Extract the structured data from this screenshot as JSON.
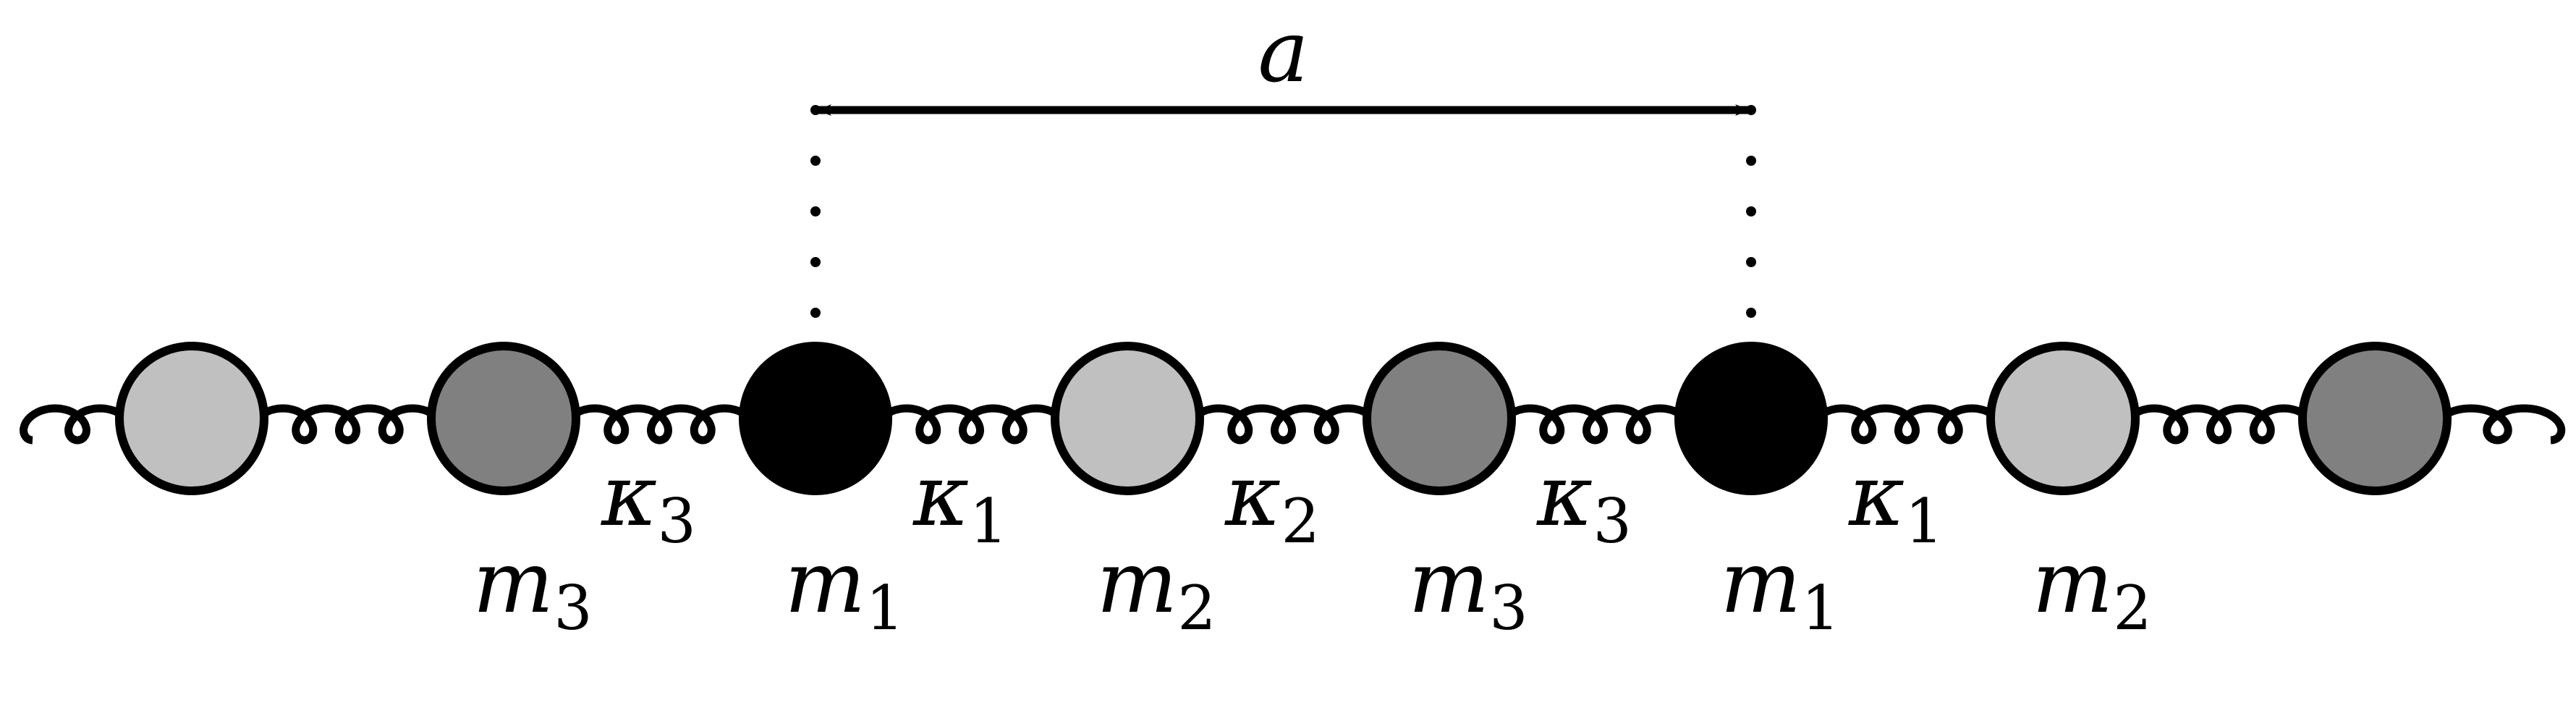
{
  "lattice": {
    "period_label": "a",
    "colors": {
      "m1": "#000000",
      "m2": "#c0c0c0",
      "m3": "#808080",
      "outline": "#000000",
      "spring": "#000000"
    },
    "masses": [
      {
        "type": "m2",
        "label": ""
      },
      {
        "type": "m3",
        "label": "m3"
      },
      {
        "type": "m1",
        "label": "m1"
      },
      {
        "type": "m2",
        "label": "m2"
      },
      {
        "type": "m3",
        "label": "m3"
      },
      {
        "type": "m1",
        "label": "m1"
      },
      {
        "type": "m2",
        "label": "m2"
      },
      {
        "type": "m3",
        "label": ""
      }
    ],
    "springs": [
      {
        "label": ""
      },
      {
        "label": "κ3"
      },
      {
        "label": "κ1"
      },
      {
        "label": "κ2"
      },
      {
        "label": "κ3"
      },
      {
        "label": "κ1"
      },
      {
        "label": ""
      }
    ]
  }
}
